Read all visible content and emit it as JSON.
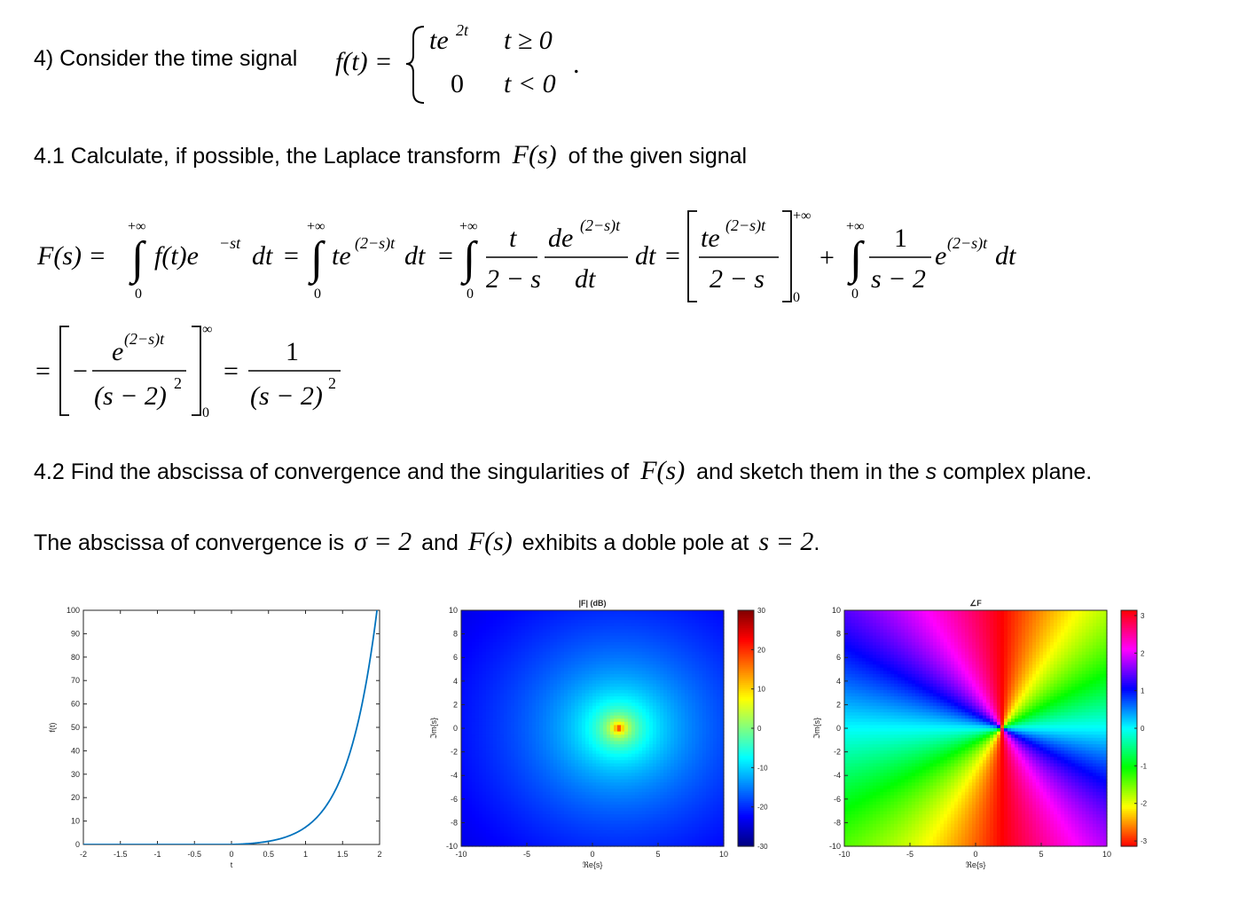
{
  "problem": {
    "intro": "4) Consider the time signal",
    "fdef": {
      "lhs": "f(t) =",
      "case1_value": "te",
      "case1_exp": "2t",
      "case1_cond": "t ≥ 0",
      "case2_value": "0",
      "case2_cond": "t < 0",
      "end": "."
    }
  },
  "q41": {
    "prefix": "4.1 Calculate, if possible, the Laplace transform",
    "symbol": "F(s)",
    "suffix": "of the given signal"
  },
  "derivation": {
    "lhs": "F(s) =",
    "upper": "+∞",
    "upper_inf": "∞",
    "lower": "0",
    "int1_body": "f(t)e",
    "int1_exp": "−st",
    "dt": "dt",
    "eq": "=",
    "int2_body": "te",
    "exp_2s_t": "(2−s)t",
    "t": "t",
    "two_minus_s": "2 − s",
    "de": "de",
    "one": "1",
    "s_minus_2": "s − 2",
    "plus": "+",
    "e": "e",
    "minus": "−",
    "s_minus_2_paren": "(s − 2)",
    "sq": "2"
  },
  "q42": {
    "prefix": "4.2 Find the abscissa of convergence and the singularities of",
    "symbol": "F(s)",
    "mid": "and sketch them in the",
    "s_italic": "s",
    "suffix": "complex plane."
  },
  "answer": {
    "prefix": "The abscissa of convergence is",
    "sigma_eq": "σ = 2",
    "and": "and",
    "symbol": "F(s)",
    "mid": "exhibits a doble pole at",
    "pole": "s = 2",
    "end": "."
  },
  "chart_data": [
    {
      "type": "line",
      "title": "",
      "xlabel": "t",
      "ylabel": "f(t)",
      "xlim": [
        -2,
        2
      ],
      "ylim": [
        0,
        100
      ],
      "xticks": [
        "-2",
        "-1.5",
        "-1",
        "-0.5",
        "0",
        "0.5",
        "1",
        "1.5",
        "2"
      ],
      "yticks": [
        "0",
        "10",
        "20",
        "30",
        "40",
        "50",
        "60",
        "70",
        "80",
        "90",
        "100"
      ],
      "series": [
        {
          "function": "t*e^(2t) for t>=0, 0 for t<0",
          "color": "#0072bd",
          "x": [
            -2,
            -1,
            0,
            0.25,
            0.5,
            0.75,
            1,
            1.25,
            1.5,
            1.75,
            2
          ],
          "y": [
            0,
            0,
            0,
            0.41,
            1.36,
            3.36,
            7.39,
            15.23,
            30.13,
            57.94,
            109.2
          ]
        }
      ]
    },
    {
      "type": "heatmap",
      "title": "|F| (dB)",
      "xlabel": "ℜe{s}",
      "ylabel": "ℑm{s}",
      "xlim": [
        -10,
        10
      ],
      "ylim": [
        -10,
        10
      ],
      "xticks": [
        "-10",
        "-5",
        "0",
        "5",
        "10"
      ],
      "yticks": [
        "10",
        "8",
        "6",
        "4",
        "2",
        "0",
        "-2",
        "-4",
        "-6",
        "-8",
        "-10"
      ],
      "colorbar": {
        "min": -30,
        "max": 30,
        "ticks": [
          "30",
          "20",
          "10",
          "0",
          "-10",
          "-20",
          "-30"
        ]
      },
      "pole": [
        2,
        0
      ],
      "colormap": "jet"
    },
    {
      "type": "heatmap",
      "title": "∠F",
      "xlabel": "ℜe{s}",
      "ylabel": "ℑm{s}",
      "xlim": [
        -10,
        10
      ],
      "ylim": [
        -10,
        10
      ],
      "xticks": [
        "-10",
        "-5",
        "0",
        "5",
        "10"
      ],
      "yticks": [
        "10",
        "8",
        "6",
        "4",
        "2",
        "0",
        "-2",
        "-4",
        "-6",
        "-8",
        "-10"
      ],
      "colorbar": {
        "min": -3.14,
        "max": 3.14,
        "ticks": [
          "3",
          "2",
          "1",
          "0",
          "-1",
          "-2",
          "-3"
        ]
      },
      "pole": [
        2,
        0
      ],
      "colormap": "hsv"
    }
  ]
}
